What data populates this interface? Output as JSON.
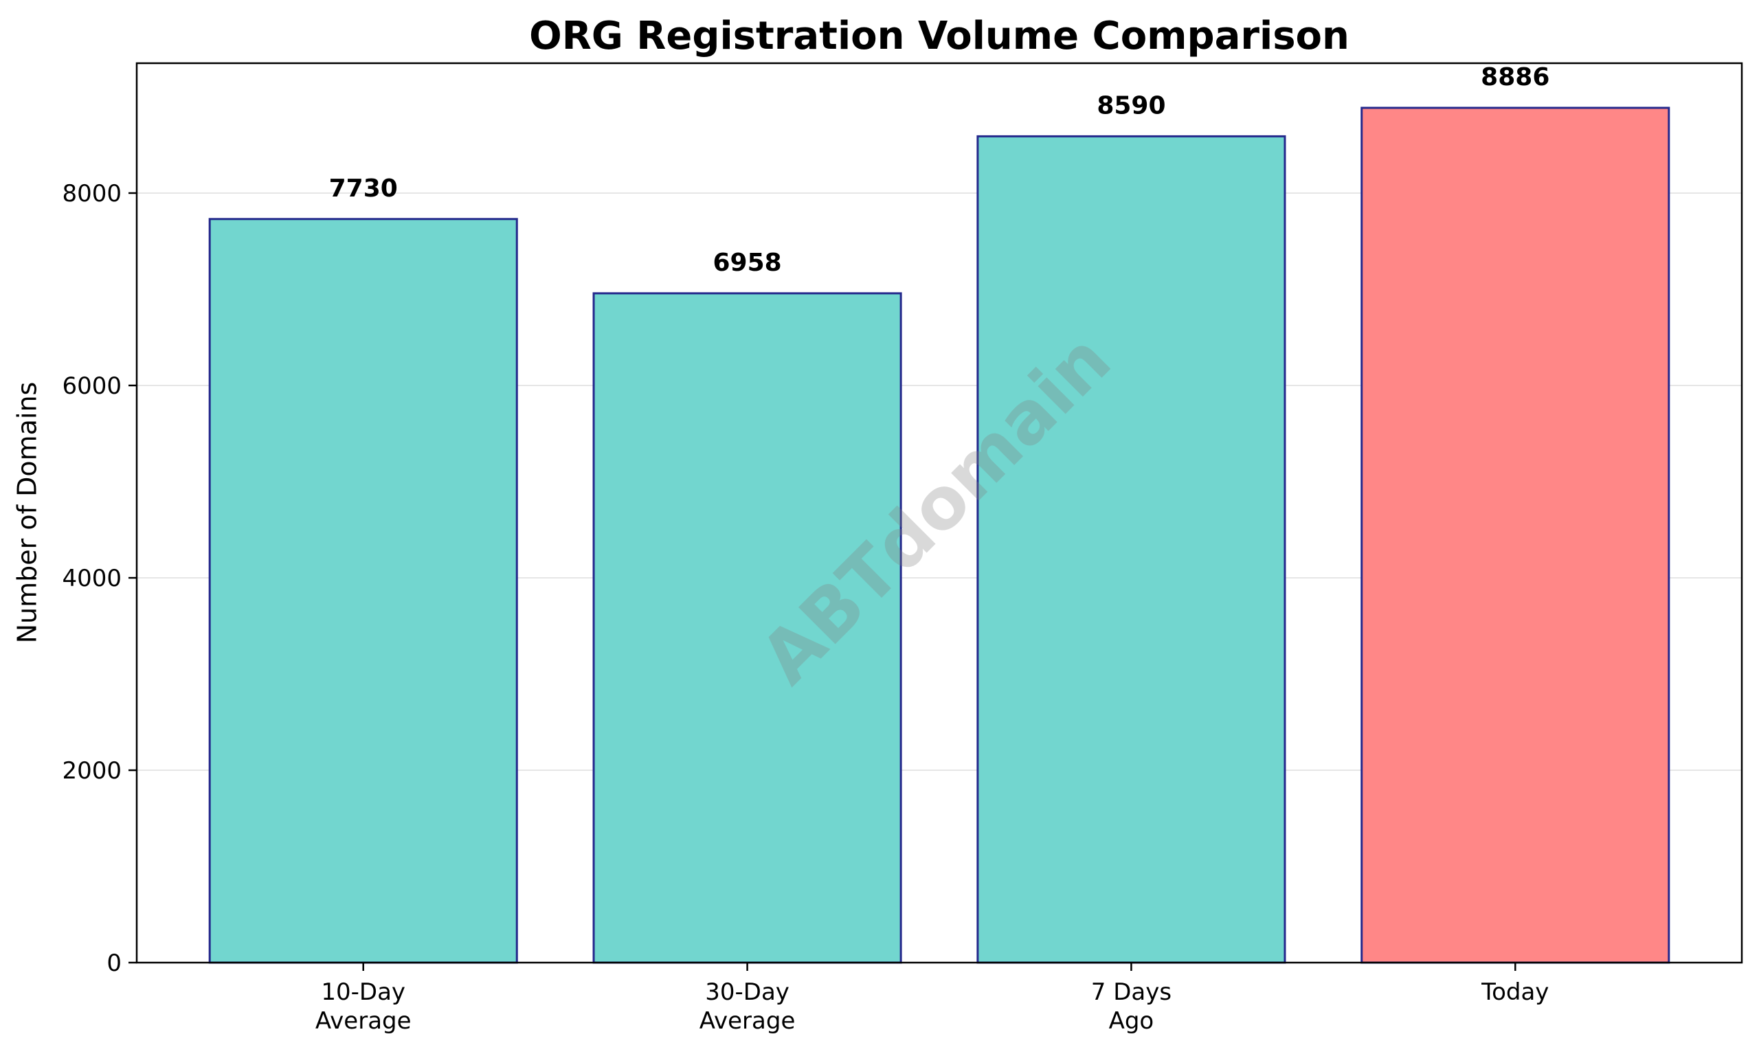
{
  "chart_data": {
    "type": "bar",
    "title": "ORG Registration Volume Comparison",
    "xlabel": "",
    "ylabel": "Number of Domains",
    "categories": [
      "10-Day\nAverage",
      "30-Day\nAverage",
      "7 Days\nAgo",
      "Today"
    ],
    "values": [
      7730,
      6958,
      8590,
      8886
    ],
    "value_labels": [
      "7730",
      "6958",
      "8590",
      "8886"
    ],
    "bar_colors": [
      "#72D6CF",
      "#72D6CF",
      "#72D6CF",
      "#FF8787"
    ],
    "bar_edge_color": "#24288C",
    "ylim": [
      0,
      9350
    ],
    "yticks": [
      0,
      2000,
      4000,
      6000,
      8000
    ],
    "ytick_labels": [
      "0",
      "2000",
      "4000",
      "6000",
      "8000"
    ],
    "grid": {
      "axis": "y",
      "color": "#E6E6E6"
    },
    "legend": null,
    "watermark": "ABTdomain"
  },
  "chart": {
    "title": "ORG Registration Volume Comparison",
    "ylabel": "Number of Domains",
    "watermark": "ABTdomain"
  }
}
